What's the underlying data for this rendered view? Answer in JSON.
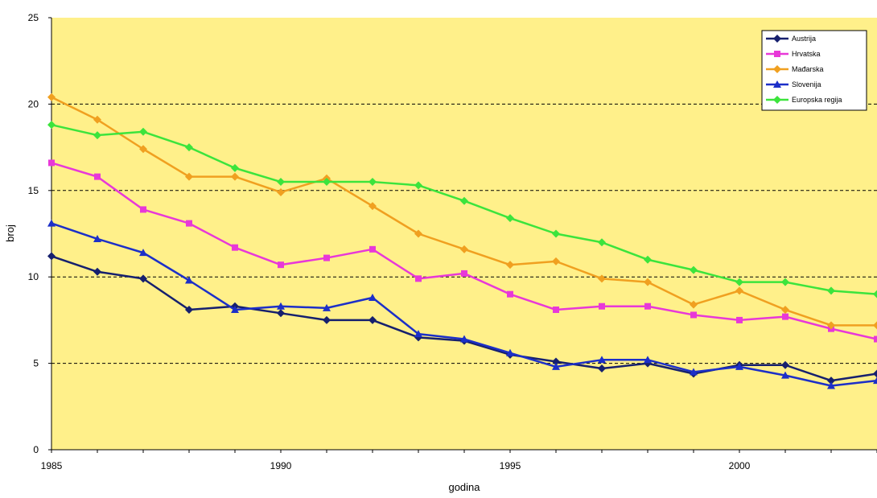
{
  "chart_data": {
    "type": "line",
    "title": "",
    "xlabel": "godina",
    "ylabel": "broj",
    "xlim": [
      1985,
      2003
    ],
    "ylim": [
      0,
      25
    ],
    "x_ticks": [
      1985,
      1990,
      1995,
      2000
    ],
    "y_ticks": [
      0,
      5,
      10,
      15,
      20,
      25
    ],
    "grid": "horizontal dashed at 5, 10, 15, 20",
    "legend_position": "top-right",
    "background_color": "#FFF08A",
    "x": [
      1985,
      1986,
      1987,
      1988,
      1989,
      1990,
      1991,
      1992,
      1993,
      1994,
      1995,
      1996,
      1997,
      1998,
      1999,
      2000,
      2001,
      2002,
      2003
    ],
    "series": [
      {
        "name": "Austrija",
        "color": "#16206E",
        "marker": "diamond",
        "values": [
          11.2,
          10.3,
          9.9,
          8.1,
          8.3,
          7.9,
          7.5,
          7.5,
          6.5,
          6.3,
          5.5,
          5.1,
          4.7,
          5.0,
          4.4,
          4.9,
          4.9,
          4.0,
          4.4
        ]
      },
      {
        "name": "Hrvatska",
        "color": "#E838D8",
        "marker": "square",
        "values": [
          16.6,
          15.8,
          13.9,
          13.1,
          11.7,
          10.7,
          11.1,
          11.6,
          9.9,
          10.2,
          9.0,
          8.1,
          8.3,
          8.3,
          7.8,
          7.5,
          7.7,
          7.0,
          6.4
        ]
      },
      {
        "name": "Mađarska",
        "color": "#F0A020",
        "marker": "diamond",
        "values": [
          20.4,
          19.1,
          17.4,
          15.8,
          15.8,
          14.9,
          15.7,
          14.1,
          12.5,
          11.6,
          10.7,
          10.9,
          9.9,
          9.7,
          8.4,
          9.2,
          8.1,
          7.2,
          7.2
        ]
      },
      {
        "name": "Slovenija",
        "color": "#1C2FC8",
        "marker": "triangle",
        "values": [
          13.1,
          12.2,
          11.4,
          9.8,
          8.1,
          8.3,
          8.2,
          8.8,
          6.7,
          6.4,
          5.6,
          4.8,
          5.2,
          5.2,
          4.5,
          4.8,
          4.3,
          3.7,
          4.0
        ]
      },
      {
        "name": "Europska regija",
        "color": "#3CE43C",
        "marker": "diamond",
        "values": [
          18.8,
          18.2,
          18.4,
          17.5,
          16.3,
          15.5,
          15.5,
          15.5,
          15.3,
          14.4,
          13.4,
          12.5,
          12.0,
          11.0,
          10.4,
          9.7,
          9.7,
          9.2,
          9.0
        ]
      }
    ]
  }
}
